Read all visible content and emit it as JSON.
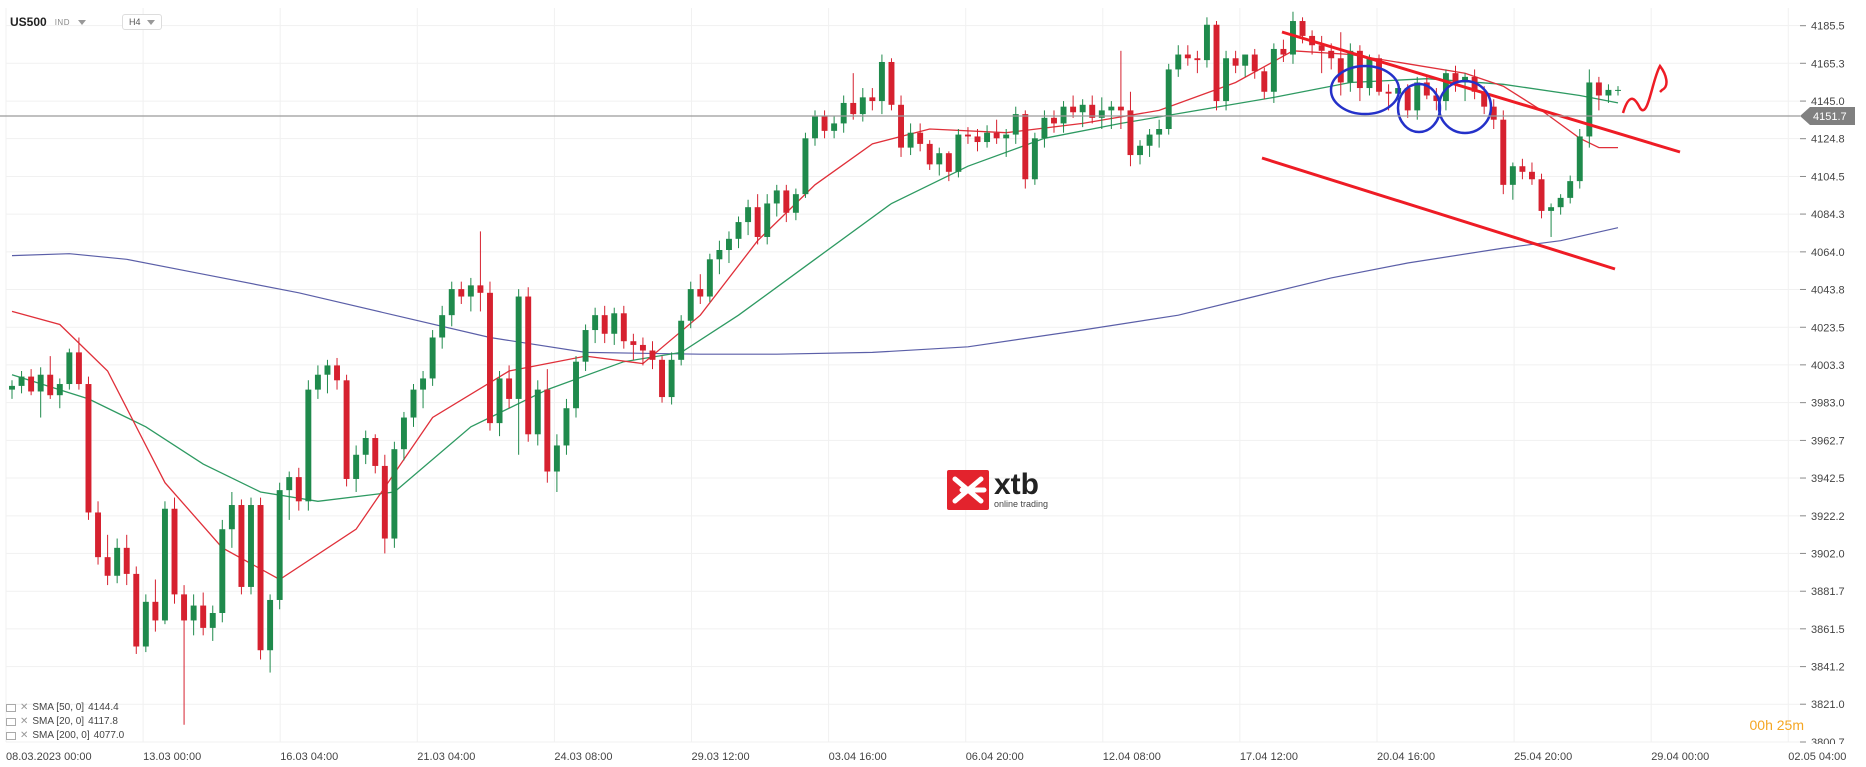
{
  "header": {
    "symbol": "US500",
    "instrument_class": "IND",
    "timeframe": "H4"
  },
  "logo": {
    "name": "xtb",
    "tagline": "online trading",
    "color": "#e3232d"
  },
  "current_price": "4151.7",
  "timer": "00h 25m",
  "legend": [
    {
      "label": "SMA [50, 0]",
      "value": "4144.4"
    },
    {
      "label": "SMA [20, 0]",
      "value": "4117.8"
    },
    {
      "label": "SMA [200, 0]",
      "value": "4077.0"
    }
  ],
  "colors": {
    "up": "#1f8a4c",
    "down": "#d6212f",
    "sma20": "#e0303a",
    "sma50": "#2e9a62",
    "sma200": "#5b5fa8",
    "annotation_red": "#ee1c25",
    "annotation_blue": "#2431c9"
  },
  "chart_data": {
    "type": "candlestick",
    "y_ticks": [
      "4185.5",
      "4165.3",
      "4145.0",
      "4124.8",
      "4104.5",
      "4084.3",
      "4064.0",
      "4043.8",
      "4023.5",
      "4003.3",
      "3983.0",
      "3962.7",
      "3942.5",
      "3922.2",
      "3902.0",
      "3881.7",
      "3861.5",
      "3841.2",
      "3821.0",
      "3800.7"
    ],
    "x_ticks": [
      "08.03.2023  00:00",
      "13.03  00:00",
      "16.03  04:00",
      "21.03  04:00",
      "24.03  08:00",
      "29.03  12:00",
      "03.04  16:00",
      "06.04  20:00",
      "12.04  08:00",
      "17.04  12:00",
      "20.04  16:00",
      "25.04  20:00",
      "29.04  00:00",
      "02.05  04:00"
    ],
    "ylim": [
      3800.7,
      4195
    ],
    "candles": [
      [
        3990,
        3995,
        3985,
        3992
      ],
      [
        3992,
        4000,
        3988,
        3997
      ],
      [
        3997,
        4001,
        3987,
        3989
      ],
      [
        3989,
        4002,
        3975,
        3998
      ],
      [
        3998,
        4008,
        3985,
        3987
      ],
      [
        3987,
        3996,
        3980,
        3993
      ],
      [
        3993,
        4012,
        3990,
        4010
      ],
      [
        4010,
        4018,
        3990,
        3993
      ],
      [
        3993,
        3997,
        3920,
        3924
      ],
      [
        3924,
        3930,
        3896,
        3900
      ],
      [
        3900,
        3912,
        3885,
        3890
      ],
      [
        3890,
        3910,
        3886,
        3905
      ],
      [
        3905,
        3912,
        3885,
        3891
      ],
      [
        3891,
        3895,
        3848,
        3852
      ],
      [
        3852,
        3880,
        3849,
        3876
      ],
      [
        3876,
        3888,
        3860,
        3866
      ],
      [
        3866,
        3930,
        3864,
        3926
      ],
      [
        3926,
        3932,
        3875,
        3880
      ],
      [
        3880,
        3885,
        3810,
        3866
      ],
      [
        3866,
        3880,
        3858,
        3874
      ],
      [
        3874,
        3881,
        3858,
        3862
      ],
      [
        3862,
        3874,
        3855,
        3870
      ],
      [
        3870,
        3920,
        3865,
        3915
      ],
      [
        3915,
        3935,
        3905,
        3928
      ],
      [
        3928,
        3931,
        3880,
        3884
      ],
      [
        3884,
        3932,
        3880,
        3928
      ],
      [
        3928,
        3932,
        3845,
        3850
      ],
      [
        3850,
        3880,
        3838,
        3877
      ],
      [
        3877,
        3940,
        3872,
        3936
      ],
      [
        3936,
        3946,
        3920,
        3943
      ],
      [
        3943,
        3948,
        3925,
        3930
      ],
      [
        3930,
        3995,
        3925,
        3990
      ],
      [
        3990,
        4003,
        3985,
        3998
      ],
      [
        3998,
        4006,
        3988,
        4003
      ],
      [
        4003,
        4007,
        3990,
        3995
      ],
      [
        3995,
        3998,
        3938,
        3942
      ],
      [
        3942,
        3960,
        3935,
        3955
      ],
      [
        3955,
        3968,
        3950,
        3964
      ],
      [
        3964,
        3966,
        3945,
        3949
      ],
      [
        3949,
        3955,
        3902,
        3910
      ],
      [
        3910,
        3962,
        3905,
        3958
      ],
      [
        3958,
        3978,
        3952,
        3975
      ],
      [
        3975,
        3993,
        3970,
        3990
      ],
      [
        3990,
        4000,
        3980,
        3996
      ],
      [
        3996,
        4022,
        3992,
        4018
      ],
      [
        4018,
        4035,
        4012,
        4030
      ],
      [
        4030,
        4048,
        4024,
        4044
      ],
      [
        4044,
        4048,
        4036,
        4040
      ],
      [
        4040,
        4050,
        4032,
        4046
      ],
      [
        4046,
        4075,
        4032,
        4042
      ],
      [
        4042,
        4048,
        3968,
        3972
      ],
      [
        3972,
        4000,
        3965,
        3996
      ],
      [
        3996,
        4003,
        3980,
        3985
      ],
      [
        3985,
        4044,
        3955,
        4040
      ],
      [
        4040,
        4045,
        3962,
        3966
      ],
      [
        3966,
        3995,
        3960,
        3990
      ],
      [
        3990,
        4001,
        3940,
        3946
      ],
      [
        3946,
        3966,
        3935,
        3960
      ],
      [
        3960,
        3985,
        3955,
        3980
      ],
      [
        3980,
        4008,
        3975,
        4005
      ],
      [
        4005,
        4025,
        4000,
        4022
      ],
      [
        4022,
        4034,
        4015,
        4030
      ],
      [
        4030,
        4035,
        4015,
        4020
      ],
      [
        4020,
        4034,
        4014,
        4031
      ],
      [
        4031,
        4035,
        4012,
        4016
      ],
      [
        4016,
        4020,
        4006,
        4014
      ],
      [
        4014,
        4018,
        4003,
        4011
      ],
      [
        4011,
        4016,
        4001,
        4006
      ],
      [
        4006,
        4008,
        3983,
        3986
      ],
      [
        3986,
        4010,
        3982,
        4006
      ],
      [
        4006,
        4030,
        4003,
        4027
      ],
      [
        4027,
        4048,
        4023,
        4044
      ],
      [
        4044,
        4052,
        4036,
        4040
      ],
      [
        4040,
        4063,
        4037,
        4060
      ],
      [
        4060,
        4070,
        4052,
        4065
      ],
      [
        4065,
        4075,
        4058,
        4071
      ],
      [
        4071,
        4083,
        4066,
        4080
      ],
      [
        4080,
        4092,
        4073,
        4088
      ],
      [
        4088,
        4095,
        4068,
        4072
      ],
      [
        4072,
        4095,
        4068,
        4090
      ],
      [
        4090,
        4100,
        4083,
        4097
      ],
      [
        4097,
        4100,
        4080,
        4085
      ],
      [
        4085,
        4098,
        4081,
        4095
      ],
      [
        4095,
        4128,
        4093,
        4125
      ],
      [
        4125,
        4140,
        4121,
        4137
      ],
      [
        4137,
        4140,
        4125,
        4129
      ],
      [
        4129,
        4137,
        4125,
        4133
      ],
      [
        4133,
        4148,
        4128,
        4144
      ],
      [
        4144,
        4160,
        4135,
        4138
      ],
      [
        4138,
        4152,
        4134,
        4147
      ],
      [
        4147,
        4152,
        4140,
        4145
      ],
      [
        4145,
        4170,
        4138,
        4166
      ],
      [
        4166,
        4168,
        4140,
        4143
      ],
      [
        4143,
        4148,
        4115,
        4120
      ],
      [
        4120,
        4133,
        4116,
        4128
      ],
      [
        4128,
        4133,
        4118,
        4122
      ],
      [
        4122,
        4124,
        4108,
        4111
      ],
      [
        4111,
        4120,
        4105,
        4117
      ],
      [
        4117,
        4118,
        4102,
        4107
      ],
      [
        4107,
        4130,
        4104,
        4127
      ],
      [
        4127,
        4131,
        4122,
        4126
      ],
      [
        4126,
        4130,
        4118,
        4123
      ],
      [
        4123,
        4132,
        4120,
        4128
      ],
      [
        4128,
        4135,
        4122,
        4125
      ],
      [
        4125,
        4130,
        4115,
        4127
      ],
      [
        4127,
        4142,
        4122,
        4138
      ],
      [
        4138,
        4140,
        4098,
        4103
      ],
      [
        4103,
        4128,
        4100,
        4125
      ],
      [
        4125,
        4140,
        4120,
        4136
      ],
      [
        4136,
        4140,
        4128,
        4133
      ],
      [
        4133,
        4145,
        4128,
        4142
      ],
      [
        4142,
        4148,
        4136,
        4139
      ],
      [
        4139,
        4146,
        4131,
        4143
      ],
      [
        4143,
        4148,
        4133,
        4136
      ],
      [
        4136,
        4147,
        4130,
        4140
      ],
      [
        4140,
        4145,
        4130,
        4142
      ],
      [
        4142,
        4172,
        4130,
        4140
      ],
      [
        4140,
        4150,
        4110,
        4116
      ],
      [
        4116,
        4124,
        4111,
        4121
      ],
      [
        4121,
        4130,
        4115,
        4127
      ],
      [
        4127,
        4135,
        4120,
        4130
      ],
      [
        4130,
        4165,
        4127,
        4162
      ],
      [
        4162,
        4175,
        4158,
        4170
      ],
      [
        4170,
        4175,
        4164,
        4168
      ],
      [
        4168,
        4172,
        4160,
        4167
      ],
      [
        4167,
        4190,
        4163,
        4186
      ],
      [
        4186,
        4188,
        4140,
        4145
      ],
      [
        4145,
        4172,
        4140,
        4168
      ],
      [
        4168,
        4172,
        4160,
        4164
      ],
      [
        4164,
        4170,
        4158,
        4170
      ],
      [
        4170,
        4173,
        4157,
        4161
      ],
      [
        4161,
        4163,
        4146,
        4150
      ],
      [
        4150,
        4176,
        4144,
        4173
      ],
      [
        4173,
        4178,
        4166,
        4170
      ],
      [
        4170,
        4193,
        4165,
        4188
      ],
      [
        4188,
        4190,
        4176,
        4180
      ],
      [
        4180,
        4183,
        4170,
        4175
      ],
      [
        4175,
        4180,
        4160,
        4172
      ],
      [
        4172,
        4176,
        4162,
        4168
      ],
      [
        4168,
        4182,
        4148,
        4155
      ],
      [
        4155,
        4176,
        4150,
        4172
      ],
      [
        4172,
        4175,
        4145,
        4152
      ],
      [
        4152,
        4170,
        4148,
        4168
      ],
      [
        4168,
        4170,
        4148,
        4150
      ],
      [
        4150,
        4154,
        4140,
        4149
      ],
      [
        4149,
        4153,
        4142,
        4152
      ],
      [
        4152,
        4154,
        4136,
        4140
      ],
      [
        4140,
        4158,
        4135,
        4155
      ],
      [
        4155,
        4159,
        4146,
        4148
      ],
      [
        4148,
        4152,
        4140,
        4145
      ],
      [
        4145,
        4162,
        4140,
        4160
      ],
      [
        4160,
        4164,
        4150,
        4155
      ],
      [
        4155,
        4160,
        4145,
        4158
      ],
      [
        4158,
        4162,
        4146,
        4150
      ],
      [
        4150,
        4153,
        4138,
        4142
      ],
      [
        4142,
        4146,
        4130,
        4135
      ],
      [
        4135,
        4140,
        4095,
        4100
      ],
      [
        4100,
        4112,
        4092,
        4110
      ],
      [
        4110,
        4114,
        4103,
        4107
      ],
      [
        4107,
        4112,
        4100,
        4103
      ],
      [
        4103,
        4106,
        4082,
        4086
      ],
      [
        4086,
        4090,
        4072,
        4088
      ],
      [
        4088,
        4095,
        4084,
        4093
      ],
      [
        4093,
        4105,
        4090,
        4102
      ],
      [
        4102,
        4130,
        4098,
        4126
      ],
      [
        4126,
        4162,
        4120,
        4155
      ],
      [
        4155,
        4158,
        4140,
        4148
      ],
      [
        4148,
        4154,
        4144,
        4151
      ],
      [
        4151,
        4153,
        4148,
        4151
      ]
    ],
    "sma20": [
      [
        0,
        4032
      ],
      [
        5,
        4025
      ],
      [
        10,
        4000
      ],
      [
        16,
        3940
      ],
      [
        22,
        3905
      ],
      [
        28,
        3888
      ],
      [
        36,
        3915
      ],
      [
        44,
        3975
      ],
      [
        52,
        4000
      ],
      [
        60,
        4008
      ],
      [
        66,
        4004
      ],
      [
        72,
        4030
      ],
      [
        78,
        4070
      ],
      [
        84,
        4100
      ],
      [
        90,
        4122
      ],
      [
        96,
        4130
      ],
      [
        104,
        4128
      ],
      [
        112,
        4133
      ],
      [
        120,
        4140
      ],
      [
        128,
        4155
      ],
      [
        134,
        4172
      ],
      [
        140,
        4170
      ],
      [
        146,
        4165
      ],
      [
        152,
        4160
      ],
      [
        156,
        4153
      ],
      [
        160,
        4140
      ],
      [
        164,
        4125
      ],
      [
        166,
        4120
      ],
      [
        168,
        4120
      ]
    ],
    "sma50": [
      [
        0,
        3998
      ],
      [
        8,
        3985
      ],
      [
        14,
        3970
      ],
      [
        20,
        3950
      ],
      [
        26,
        3935
      ],
      [
        32,
        3930
      ],
      [
        40,
        3935
      ],
      [
        48,
        3970
      ],
      [
        56,
        3990
      ],
      [
        64,
        4005
      ],
      [
        70,
        4010
      ],
      [
        76,
        4030
      ],
      [
        84,
        4060
      ],
      [
        92,
        4090
      ],
      [
        100,
        4110
      ],
      [
        108,
        4125
      ],
      [
        116,
        4133
      ],
      [
        124,
        4140
      ],
      [
        132,
        4147
      ],
      [
        140,
        4155
      ],
      [
        148,
        4157
      ],
      [
        156,
        4154
      ],
      [
        164,
        4148
      ],
      [
        168,
        4144
      ]
    ],
    "sma200": [
      [
        0,
        4062
      ],
      [
        6,
        4063
      ],
      [
        12,
        4060
      ],
      [
        20,
        4052
      ],
      [
        30,
        4042
      ],
      [
        40,
        4030
      ],
      [
        50,
        4018
      ],
      [
        60,
        4010
      ],
      [
        72,
        4009
      ],
      [
        80,
        4009
      ],
      [
        90,
        4010
      ],
      [
        100,
        4013
      ],
      [
        112,
        4022
      ],
      [
        122,
        4030
      ],
      [
        130,
        4040
      ],
      [
        138,
        4050
      ],
      [
        146,
        4058
      ],
      [
        156,
        4066
      ],
      [
        162,
        4070
      ],
      [
        168,
        4077
      ]
    ]
  }
}
